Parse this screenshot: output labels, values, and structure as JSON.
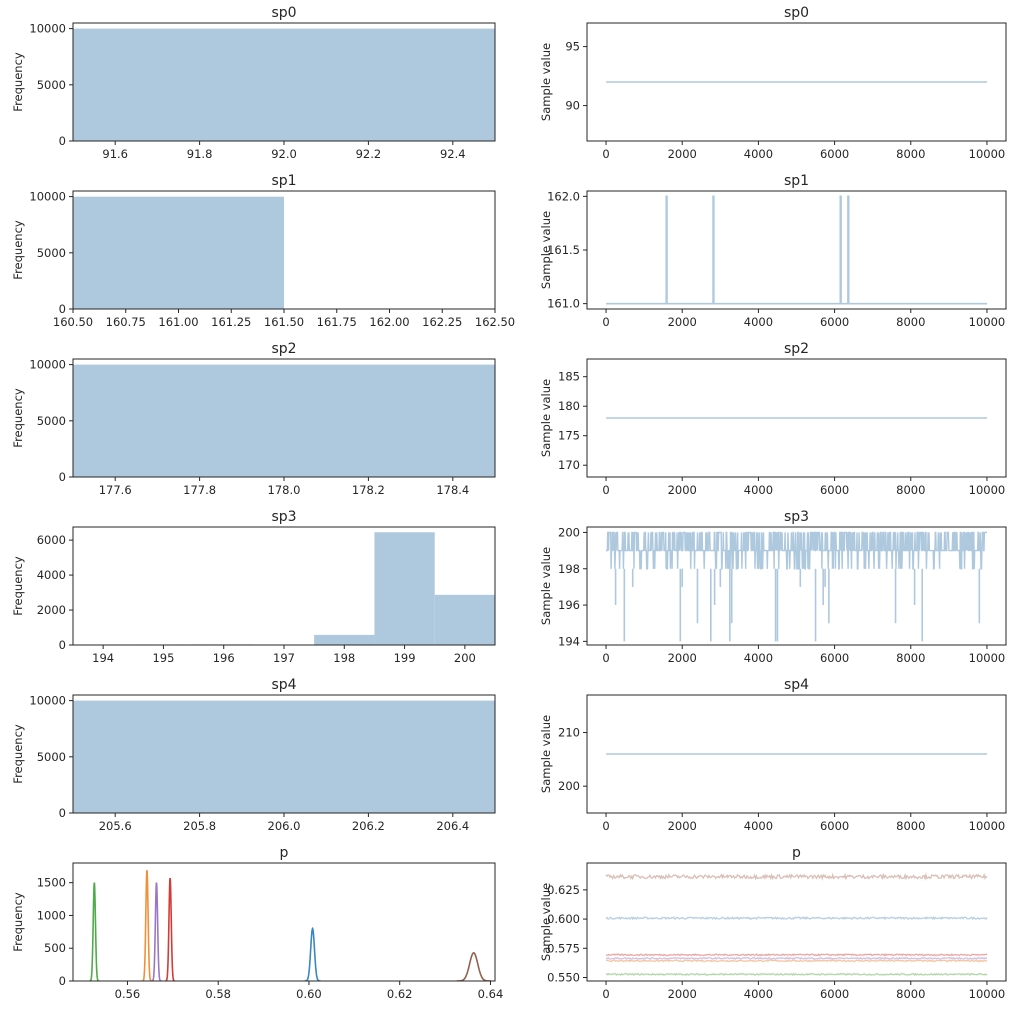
{
  "colors": {
    "hist": "#aec8de",
    "trace": "#aec8de",
    "axes": "#262626",
    "p_series": [
      "#3b87c1",
      "#f0913a",
      "#50ab4a",
      "#d33b36",
      "#9a78c4",
      "#92624f"
    ],
    "p_trace_series": [
      "#b6cfe3",
      "#f5c69f",
      "#b0d8a6",
      "#eca6a2",
      "#d2c2e2",
      "#d9bfb6"
    ]
  },
  "chart_data": [
    {
      "panel": "hist",
      "type": "bar",
      "title": "sp0",
      "ylabel": "Frequency",
      "xlim": [
        91.5,
        92.5
      ],
      "ylim": [
        0,
        10500
      ],
      "xticks": [
        "91.6",
        "91.8",
        "92.0",
        "92.2",
        "92.4"
      ],
      "xtick_values": [
        91.6,
        91.8,
        92.0,
        92.2,
        92.4
      ],
      "yticks": [
        "0",
        "5000",
        "10000"
      ],
      "ytick_values": [
        0,
        5000,
        10000
      ],
      "bars": [
        {
          "x0": 91.5,
          "x1": 92.5,
          "value": 10000
        }
      ]
    },
    {
      "panel": "trace",
      "type": "line",
      "title": "sp0",
      "ylabel": "Sample value",
      "xlim": [
        -500,
        10500
      ],
      "ylim": [
        87,
        97
      ],
      "xticks": [
        "0",
        "2000",
        "4000",
        "6000",
        "8000",
        "10000"
      ],
      "xtick_values": [
        0,
        2000,
        4000,
        6000,
        8000,
        10000
      ],
      "yticks": [
        "90",
        "95"
      ],
      "ytick_values": [
        90,
        95
      ],
      "series": [
        {
          "x": [
            0,
            10000
          ],
          "y": [
            92,
            92
          ]
        }
      ]
    },
    {
      "panel": "hist",
      "type": "bar",
      "title": "sp1",
      "ylabel": "Frequency",
      "xlim": [
        160.5,
        162.5
      ],
      "ylim": [
        0,
        10500
      ],
      "xticks": [
        "160.50",
        "160.75",
        "161.00",
        "161.25",
        "161.50",
        "161.75",
        "162.00",
        "162.25",
        "162.50"
      ],
      "xtick_values": [
        160.5,
        160.75,
        161.0,
        161.25,
        161.5,
        161.75,
        162.0,
        162.25,
        162.5
      ],
      "yticks": [
        "0",
        "5000",
        "10000"
      ],
      "ytick_values": [
        0,
        5000,
        10000
      ],
      "bars": [
        {
          "x0": 160.5,
          "x1": 161.5,
          "value": 9996
        },
        {
          "x0": 161.5,
          "x1": 162.5,
          "value": 4
        }
      ]
    },
    {
      "panel": "trace",
      "type": "line",
      "title": "sp1",
      "ylabel": "Sample value",
      "xlim": [
        -500,
        10500
      ],
      "ylim": [
        160.95,
        162.05
      ],
      "xticks": [
        "0",
        "2000",
        "4000",
        "6000",
        "8000",
        "10000"
      ],
      "xtick_values": [
        0,
        2000,
        4000,
        6000,
        8000,
        10000
      ],
      "yticks": [
        "161.0",
        "161.5",
        "162.0"
      ],
      "ytick_values": [
        161.0,
        161.5,
        162.0
      ],
      "series": [
        {
          "x": [
            0,
            1580,
            1580,
            1600,
            1600,
            2810,
            2810,
            2830,
            2830,
            6150,
            6150,
            6170,
            6170,
            6350,
            6350,
            6370,
            6370,
            10000
          ],
          "y": [
            161,
            161,
            162,
            162,
            161,
            161,
            162,
            162,
            161,
            161,
            162,
            162,
            161,
            161,
            162,
            162,
            161,
            161
          ]
        }
      ]
    },
    {
      "panel": "hist",
      "type": "bar",
      "title": "sp2",
      "ylabel": "Frequency",
      "xlim": [
        177.5,
        178.5
      ],
      "ylim": [
        0,
        10500
      ],
      "xticks": [
        "177.6",
        "177.8",
        "178.0",
        "178.2",
        "178.4"
      ],
      "xtick_values": [
        177.6,
        177.8,
        178.0,
        178.2,
        178.4
      ],
      "yticks": [
        "0",
        "5000",
        "10000"
      ],
      "ytick_values": [
        0,
        5000,
        10000
      ],
      "bars": [
        {
          "x0": 177.5,
          "x1": 178.5,
          "value": 10000
        }
      ]
    },
    {
      "panel": "trace",
      "type": "line",
      "title": "sp2",
      "ylabel": "Sample value",
      "xlim": [
        -500,
        10500
      ],
      "ylim": [
        168,
        188
      ],
      "xticks": [
        "0",
        "2000",
        "4000",
        "6000",
        "8000",
        "10000"
      ],
      "xtick_values": [
        0,
        2000,
        4000,
        6000,
        8000,
        10000
      ],
      "yticks": [
        "170",
        "175",
        "180",
        "185"
      ],
      "ytick_values": [
        170,
        175,
        180,
        185
      ],
      "series": [
        {
          "x": [
            0,
            10000
          ],
          "y": [
            178,
            178
          ]
        }
      ]
    },
    {
      "panel": "hist",
      "type": "bar",
      "title": "sp3",
      "ylabel": "Frequency",
      "xlim": [
        193.5,
        200.5
      ],
      "ylim": [
        0,
        6750
      ],
      "xticks": [
        "194",
        "195",
        "196",
        "197",
        "198",
        "199",
        "200"
      ],
      "xtick_values": [
        194,
        195,
        196,
        197,
        198,
        199,
        200
      ],
      "yticks": [
        "0",
        "2000",
        "4000",
        "6000"
      ],
      "ytick_values": [
        0,
        2000,
        4000,
        6000
      ],
      "bars": [
        {
          "x0": 193.5,
          "x1": 194.5,
          "value": 15
        },
        {
          "x0": 194.5,
          "x1": 195.5,
          "value": 30
        },
        {
          "x0": 195.5,
          "x1": 196.5,
          "value": 35
        },
        {
          "x0": 196.5,
          "x1": 197.5,
          "value": 15
        },
        {
          "x0": 197.5,
          "x1": 198.5,
          "value": 580
        },
        {
          "x0": 198.5,
          "x1": 199.5,
          "value": 6450
        },
        {
          "x0": 199.5,
          "x1": 200.5,
          "value": 2870
        }
      ]
    },
    {
      "panel": "trace",
      "type": "line",
      "title": "sp3",
      "ylabel": "Sample value",
      "xlim": [
        -500,
        10500
      ],
      "ylim": [
        193.8,
        200.3
      ],
      "xticks": [
        "0",
        "2000",
        "4000",
        "6000",
        "8000",
        "10000"
      ],
      "xtick_values": [
        0,
        2000,
        4000,
        6000,
        8000,
        10000
      ],
      "yticks": [
        "194",
        "196",
        "198",
        "200"
      ],
      "ytick_values": [
        194,
        196,
        198,
        200
      ],
      "series": [
        {
          "kind": "dense_band",
          "x": [
            0,
            10000
          ],
          "band": [
            198,
            200
          ],
          "spikes": [
            {
              "x": 250,
              "y": 196
            },
            {
              "x": 480,
              "y": 194
            },
            {
              "x": 700,
              "y": 197
            },
            {
              "x": 1950,
              "y": 194
            },
            {
              "x": 2000,
              "y": 197
            },
            {
              "x": 2400,
              "y": 195
            },
            {
              "x": 2750,
              "y": 194
            },
            {
              "x": 2850,
              "y": 196
            },
            {
              "x": 3000,
              "y": 197
            },
            {
              "x": 3250,
              "y": 194
            },
            {
              "x": 3300,
              "y": 195
            },
            {
              "x": 4450,
              "y": 194
            },
            {
              "x": 4500,
              "y": 194
            },
            {
              "x": 5100,
              "y": 197
            },
            {
              "x": 5500,
              "y": 194
            },
            {
              "x": 5700,
              "y": 196
            },
            {
              "x": 5750,
              "y": 197
            },
            {
              "x": 5850,
              "y": 195
            },
            {
              "x": 7600,
              "y": 195
            },
            {
              "x": 8100,
              "y": 196
            },
            {
              "x": 8300,
              "y": 194
            },
            {
              "x": 9800,
              "y": 195
            }
          ]
        }
      ]
    },
    {
      "panel": "hist",
      "type": "bar",
      "title": "sp4",
      "ylabel": "Frequency",
      "xlim": [
        205.5,
        206.5
      ],
      "ylim": [
        0,
        10500
      ],
      "xticks": [
        "205.6",
        "205.8",
        "206.0",
        "206.2",
        "206.4"
      ],
      "xtick_values": [
        205.6,
        205.8,
        206.0,
        206.2,
        206.4
      ],
      "yticks": [
        "0",
        "5000",
        "10000"
      ],
      "ytick_values": [
        0,
        5000,
        10000
      ],
      "bars": [
        {
          "x0": 205.5,
          "x1": 206.5,
          "value": 10000
        }
      ]
    },
    {
      "panel": "trace",
      "type": "line",
      "title": "sp4",
      "ylabel": "Sample value",
      "xlim": [
        -500,
        10500
      ],
      "ylim": [
        195,
        217
      ],
      "xticks": [
        "0",
        "2000",
        "4000",
        "6000",
        "8000",
        "10000"
      ],
      "xtick_values": [
        0,
        2000,
        4000,
        6000,
        8000,
        10000
      ],
      "yticks": [
        "200",
        "210"
      ],
      "ytick_values": [
        200,
        210
      ],
      "series": [
        {
          "x": [
            0,
            10000
          ],
          "y": [
            206,
            206
          ]
        }
      ]
    },
    {
      "panel": "density",
      "type": "line",
      "title": "p",
      "ylabel": "Frequency",
      "xlim": [
        0.548,
        0.641
      ],
      "ylim": [
        0,
        1800
      ],
      "xticks": [
        "0.56",
        "0.58",
        "0.60",
        "0.62",
        "0.64"
      ],
      "xtick_values": [
        0.56,
        0.58,
        0.6,
        0.62,
        0.64
      ],
      "yticks": [
        "0",
        "500",
        "1000",
        "1500"
      ],
      "ytick_values": [
        0,
        500,
        1000,
        1500
      ],
      "series": [
        {
          "mean": 0.6008,
          "sd": 0.00042,
          "peak": 800
        },
        {
          "mean": 0.5643,
          "sd": 0.00025,
          "peak": 1690
        },
        {
          "mean": 0.5527,
          "sd": 0.00025,
          "peak": 1500
        },
        {
          "mean": 0.5694,
          "sd": 0.00025,
          "peak": 1570
        },
        {
          "mean": 0.5664,
          "sd": 0.00025,
          "peak": 1500
        },
        {
          "mean": 0.6363,
          "sd": 0.0009,
          "peak": 430
        }
      ]
    },
    {
      "panel": "trace",
      "type": "line",
      "title": "p",
      "ylabel": "Sample value",
      "xlim": [
        -500,
        10500
      ],
      "ylim": [
        0.547,
        0.648
      ],
      "xticks": [
        "0",
        "2000",
        "4000",
        "6000",
        "8000",
        "10000"
      ],
      "xtick_values": [
        0,
        2000,
        4000,
        6000,
        8000,
        10000
      ],
      "yticks": [
        "0.550",
        "0.575",
        "0.600",
        "0.625"
      ],
      "ytick_values": [
        0.55,
        0.575,
        0.6,
        0.625
      ],
      "series": [
        {
          "kind": "noisy",
          "x": [
            0,
            10000
          ],
          "level": 0.6008,
          "spread": 0.0008
        },
        {
          "kind": "noisy",
          "x": [
            0,
            10000
          ],
          "level": 0.5643,
          "spread": 0.0006
        },
        {
          "kind": "noisy",
          "x": [
            0,
            10000
          ],
          "level": 0.5527,
          "spread": 0.0006
        },
        {
          "kind": "noisy",
          "x": [
            0,
            10000
          ],
          "level": 0.5694,
          "spread": 0.0006
        },
        {
          "kind": "noisy",
          "x": [
            0,
            10000
          ],
          "level": 0.5664,
          "spread": 0.0006
        },
        {
          "kind": "noisy",
          "x": [
            0,
            10000
          ],
          "level": 0.6363,
          "spread": 0.0016
        }
      ]
    }
  ]
}
